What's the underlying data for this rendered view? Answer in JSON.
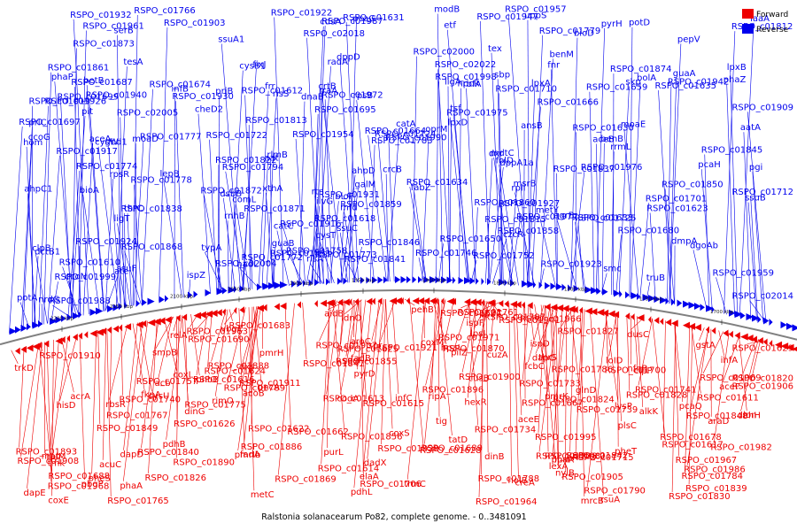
{
  "caption": "Ralstonia solanacearum Po82, complete genome. - 0..3481091",
  "legend": [
    {
      "label": "Forward",
      "color": "#ee0000"
    },
    {
      "label": "Reverse",
      "color": "#0000ee"
    }
  ],
  "colors": {
    "forward": "#ee0000",
    "reverse": "#0000ee",
    "backbone": "#808080",
    "tick": "#222222"
  },
  "ticks": [
    "2200 kbp",
    "2150 kbp",
    "2100 kbp",
    "2050 kbp",
    "2000 kbp",
    "1950 kbp",
    "1900 kbp",
    "1850 kbp",
    "1800 kbp",
    "1750 kbp",
    "1700 kbp"
  ],
  "reverse_labels": [
    "truB",
    "rplI",
    "pit",
    "dnaB",
    "hom",
    "thrC",
    "crcB",
    "rtn",
    "sbp",
    "ssuF",
    "cysT",
    "ilvG",
    "rrmL",
    "aceB",
    "dsbB",
    "rraA",
    "radA",
    "czcR",
    "ssuA1",
    "hadL",
    "aceA",
    "dppA1a",
    "dmpA",
    "iaaA",
    "dppD",
    "RSPO_c01976",
    "RSPO_c01975",
    "RSPO_c01972",
    "rpsB",
    "skp",
    "fabZ",
    "lpxB",
    "lpxA",
    "lpxD",
    "cdsA",
    "uppS",
    "RSPO_c01909",
    "nrdG",
    "RSPO_c01903",
    "ligT",
    "pcaG",
    "pcaH",
    "guaA",
    "catA",
    "RSPO_c01861",
    "RSPO_c01860",
    "RSPO_c01859",
    "RSPO_c01858",
    "RSPO_c01851",
    "RSPO_c01850",
    "RSPO_c01846",
    "RSPO_c01845",
    "RSPO_c01841",
    "RSPO_c01838",
    "RSPO_c01837",
    "RSPO_c01822",
    "RSPO_c01815",
    "RSPO_c01813",
    "RSPO_c01812",
    "gbd1",
    "RSPO_c01783",
    "msrB",
    "ispZ",
    "RSPO_c01779",
    "RSPO_c01778",
    "RSPO_c01777",
    "RSPO_c01752",
    "RSPO_c01746",
    "RSPO_c01774",
    "RSPO_c01773",
    "RSPO_c01772",
    "RSPO_c01758",
    "RSPO_c01766",
    "RSPO_c01725",
    "RSPO_c01724",
    "RSPO_c01712",
    "RSPO_c01710",
    "RSPO_c01701",
    "RSPO_c01722",
    "RSPO_c01699",
    "RSPO_c01697",
    "RSPO_c01695",
    "RSPO_c01650",
    "RSPO_c01674",
    "RSPO_c01687",
    "RSPO_c01680",
    "RSPO_c01666",
    "RSPO_c01664",
    "RSPO_c01659",
    "RSPO_c01635",
    "RSPO_c01634",
    "RSPO_c01631",
    "RSPO_c01633",
    "RSPO_c01630",
    "RSPO_c01623",
    "RSPO_c01618",
    "RSPO_c01612",
    "RSPO_c01610",
    "RSPO_c01917",
    "RSPO_c01932",
    "RSPO_c01922",
    "RSPO_c01924",
    "RSPO_c01919",
    "RSPO_c01923",
    "RSPO_c01940",
    "RSPO_c01916",
    "RSPO_c01926",
    "RSPO_c01927",
    "RSPO_c01930",
    "RSPO_c01931",
    "RSPO_c01942",
    "RSPO_c01947",
    "RSPO_c01954",
    "RSPO_c01957",
    "RSPO_c01959",
    "RSPO_c01961",
    "RSPO_c02022",
    "RSPO_c02018",
    "RSPO_c02004",
    "RSPO_c01998",
    "RSPO_c02014",
    "RSPO_c01999",
    "RSPO_c02005",
    "RSPO_c01988",
    "RSPO_c01990",
    "RSPO_c01987",
    "RSPO_c02000",
    "RSPO_c01977",
    "RSPO_c01872",
    "RSPO_c01868",
    "RSPO_c01871",
    "RSPO_c01873",
    "RSPO_c01874",
    "RSPO_c01794",
    "ccoN",
    "ccoG",
    "infB",
    "typA",
    "rbfA",
    "ansB",
    "pepV",
    "rpsR",
    "priB",
    "moaD",
    "clpB",
    "moaE",
    "ssuC",
    "aatA",
    "cysB1",
    "pyrH",
    "smc",
    "tsf",
    "frr",
    "ligA",
    "rlmB",
    "guaB",
    "betB",
    "cheD2",
    "rnhB",
    "dxr",
    "benB",
    "bioA",
    "bioF",
    "bioD",
    "phaZ",
    "bolA",
    "ssuB",
    "potA",
    "modB",
    "potD",
    "cysW",
    "tesA",
    "lepB",
    "pgi",
    "crtB",
    "risA",
    "ahpC1",
    "ahpD",
    "risS",
    "comL",
    "mfd",
    "serB",
    "aat",
    "tex",
    "ate",
    "dctB1",
    "folD",
    "prlC",
    "hpcR",
    "xthA",
    "galM",
    "fixJ",
    "etf",
    "oprM",
    "agrB",
    "mdtC",
    "fnr",
    "metY",
    "phaP",
    "dgoAb",
    "catC",
    "benM"
  ],
  "forward_labels": [
    "lexA",
    "pmrIb",
    "spr",
    "pmrK",
    "pmrH",
    "RSPO_c01995",
    "RSPO_c01966",
    "dadX",
    "glnD",
    "RSPO_c01971",
    "RSPO_c01981",
    "RSPO_c01982",
    "RSPO_c01986",
    "RSPO_c01963",
    "RSPO_c01964",
    "RSPO_c01967",
    "RSPO_c01968",
    "RSPO_c01969",
    "acrA",
    "hexR",
    "acb",
    "dapC",
    "rsuA",
    "dapD",
    "dapE",
    "RSPO_c01941",
    "smpB",
    "RSPO_c01929",
    "RSPO_c01906",
    "RSPO_c01911",
    "RSPO_c01896",
    "RSPO_c01869",
    "RSPO_c01870",
    "RSPO_c01900",
    "RSPO_c01888",
    "RSPO_c01886",
    "RSPO_c01890",
    "RSPO_c01910",
    "RSPO_c01907",
    "RSPO_c01921",
    "pcaQ",
    "RSPO_c01908",
    "RSPO_c01893",
    "sgaI",
    "creA",
    "RSPO_c01905",
    "coxS",
    "coxL",
    "coxM",
    "coxE",
    "RSPO_c01855",
    "RSPO_c01856",
    "RSPO_c01848",
    "RSPO_c01847",
    "RSPO_c01840",
    "mrcB",
    "rbsR",
    "cysU",
    "gstA",
    "acoB",
    "pdhB",
    "dxs",
    "tatD",
    "holB",
    "pilZ",
    "tmk",
    "ripA",
    "nylB",
    "pehB",
    "fadA",
    "araD",
    "elaA",
    "vbgC",
    "fadB",
    "alkK",
    "RSPO_c01784",
    "RSPO_c01842",
    "RSPO_c01839",
    "RSPO_c01828",
    "RSPO_c01849",
    "RSPO_c01830",
    "RSPO_c01824",
    "RSPO_c01826",
    "RSPO_c01827",
    "RSPO_c01820",
    "dehH",
    "aidB",
    "pncA",
    "RSPO_c01786",
    "RSPO_c01787",
    "RSPO_c01788",
    "RSPO_c01789",
    "RSPO_c01790",
    "RSPO_c01757",
    "RSPO_c01761",
    "RSPO_c01767",
    "RSPO_c01765",
    "RSPO_c01775",
    "purL",
    "loID",
    "tig",
    "lon",
    "trmC",
    "cusB",
    "ispD",
    "ispF",
    "phbC",
    "phaA",
    "pyrD",
    "trkD",
    "acuC",
    "aceF",
    "hpaI",
    "thrS",
    "plsC",
    "dinG",
    "metC",
    "RSPO_c01706",
    "RSPO_c01678",
    "RSPO_c01683",
    "RSPO_c01733",
    "RSPO_c01739",
    "RSPO_c01734",
    "RSPO_c01740",
    "RSPO_c01741",
    "clpP",
    "phaR",
    "dusC",
    "rimO",
    "RSPO_c01688",
    "RSPO_c01690",
    "RSPO_c01700",
    "RSPO_c01689",
    "RSPO_c01715",
    "phbB",
    "pbgP",
    "fcbC",
    "nfnB",
    "lysP",
    "rplM",
    "pheS",
    "pheT",
    "RSPO_c01662",
    "RSPO_c01667",
    "relA",
    "infC",
    "ihfA",
    "idnO",
    "aroC",
    "lpsJ",
    "lpsI",
    "fkpA",
    "codA",
    "pdhL",
    "dinB",
    "aceE",
    "RSPO_c01611",
    "RSPO_c01613",
    "RSPO_c01614",
    "RSPO_c01615",
    "RSPO_c01616",
    "RSPO_c01617",
    "RSPO_c01622",
    "RSPO_c01624",
    "RSPO_c01625",
    "RSPO_c01626",
    "RSPO_c01627",
    "RSPO_c01628",
    "RSPO_c01629",
    "map",
    "cuzA",
    "hisD",
    "RSPO_c01738"
  ]
}
